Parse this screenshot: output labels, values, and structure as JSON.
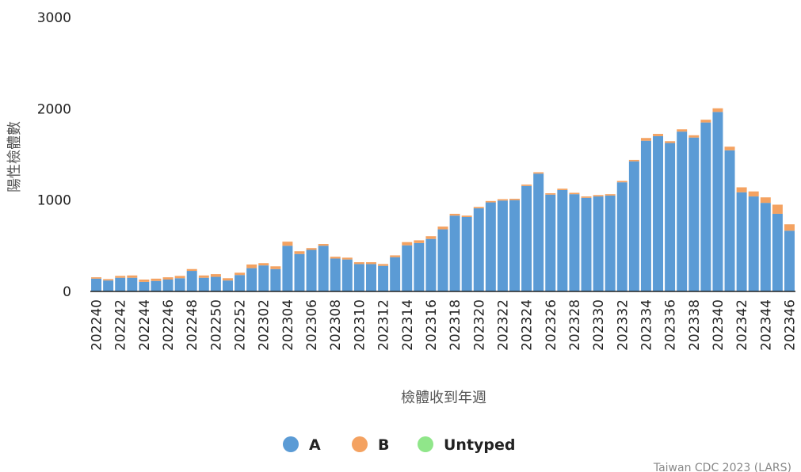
{
  "chart_data": {
    "type": "bar",
    "stacked": true,
    "ylabel": "陽性檢體數",
    "xlabel": "檢體收到年週",
    "ylim": [
      0,
      3000
    ],
    "y_ticks": [
      "0",
      "1000",
      "2000",
      "3000"
    ],
    "grid": false,
    "legend_position": "bottom",
    "credit": "Taiwan CDC 2023 (LARS)",
    "categories": [
      "202240",
      "202241",
      "202242",
      "202243",
      "202244",
      "202245",
      "202246",
      "202247",
      "202248",
      "202249",
      "202250",
      "202251",
      "202252",
      "202301",
      "202302",
      "202303",
      "202304",
      "202305",
      "202306",
      "202307",
      "202308",
      "202309",
      "202310",
      "202311",
      "202312",
      "202313",
      "202314",
      "202315",
      "202316",
      "202317",
      "202318",
      "202319",
      "202320",
      "202321",
      "202322",
      "202323",
      "202324",
      "202325",
      "202326",
      "202327",
      "202328",
      "202329",
      "202330",
      "202331",
      "202332",
      "202333",
      "202334",
      "202335",
      "202336",
      "202337",
      "202338",
      "202339",
      "202340",
      "202341",
      "202342",
      "202343",
      "202344",
      "202345",
      "202346"
    ],
    "x_tick_labels": [
      "202240",
      "202242",
      "202244",
      "202246",
      "202248",
      "202250",
      "202252",
      "202302",
      "202304",
      "202306",
      "202308",
      "202310",
      "202312",
      "202314",
      "202316",
      "202318",
      "202320",
      "202322",
      "202324",
      "202326",
      "202328",
      "202330",
      "202332",
      "202334",
      "202336",
      "202338",
      "202340",
      "202342",
      "202344",
      "202346"
    ],
    "series": [
      {
        "name": "A",
        "color": "#5b9bd5",
        "values": [
          140,
          120,
          150,
          150,
          105,
          115,
          130,
          145,
          225,
          150,
          160,
          120,
          180,
          255,
          285,
          245,
          500,
          410,
          455,
          500,
          360,
          350,
          300,
          300,
          280,
          375,
          505,
          530,
          575,
          680,
          830,
          815,
          910,
          975,
          995,
          1000,
          1155,
          1290,
          1060,
          1110,
          1065,
          1025,
          1040,
          1050,
          1195,
          1425,
          1650,
          1700,
          1625,
          1750,
          1685,
          1850,
          1965,
          1545,
          1085,
          1040,
          970,
          850,
          665
        ]
      },
      {
        "name": "B",
        "color": "#f4a261",
        "values": [
          15,
          15,
          20,
          25,
          25,
          25,
          25,
          25,
          20,
          25,
          30,
          25,
          25,
          40,
          25,
          30,
          45,
          30,
          20,
          20,
          20,
          20,
          20,
          20,
          20,
          20,
          35,
          30,
          30,
          30,
          20,
          15,
          15,
          15,
          15,
          15,
          15,
          15,
          15,
          15,
          15,
          15,
          15,
          15,
          15,
          15,
          30,
          25,
          20,
          25,
          25,
          30,
          40,
          40,
          55,
          55,
          60,
          100,
          70
        ]
      },
      {
        "name": "Untyped",
        "color": "#90e68a",
        "values": [
          0,
          0,
          0,
          0,
          0,
          0,
          0,
          0,
          0,
          0,
          0,
          0,
          0,
          0,
          0,
          0,
          0,
          0,
          0,
          0,
          0,
          0,
          0,
          0,
          0,
          0,
          0,
          0,
          0,
          0,
          0,
          0,
          0,
          0,
          0,
          0,
          0,
          0,
          0,
          0,
          0,
          0,
          0,
          0,
          0,
          0,
          0,
          0,
          0,
          0,
          0,
          0,
          0,
          0,
          0,
          0,
          0,
          0,
          0
        ]
      }
    ]
  }
}
